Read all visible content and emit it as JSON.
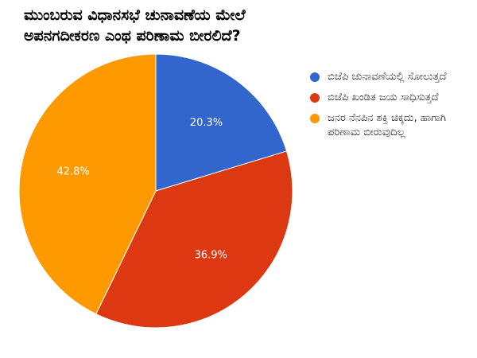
{
  "chart_data": {
    "type": "pie",
    "title": [
      "ಮುಂಬರುವ ವಿಧಾನಸಭೆ ಚುನಾವಣೆಯ ಮೇಲೆ",
      "ಅಪನಗದೀಕರಣ ಎಂಥ ಪರಿಣಾಮ ಬೀರಲಿದೆ?"
    ],
    "categories": [
      "ಬಿಜೆಪಿ ಚುನಾವಣೆಯಲ್ಲಿ ಸೋಲುತ್ತದೆ",
      "ಬಿಜೆಪಿ ಖಂಡಿತ ಜಯ ಸಾಧಿಸುತ್ತದೆ",
      "ಜನರ ನೆನಪಿನ ಶಕ್ತಿ ಚಿಕ್ಕದು, ಹಾಗಾಗಿ ಪರಿಣಾಮ ಬೀರುವುದಿಲ್ಲ"
    ],
    "values": [
      20.3,
      36.9,
      42.8
    ],
    "value_labels": [
      "20.3%",
      "36.9%",
      "42.8%"
    ],
    "colors": [
      "#3366cc",
      "#dc3912",
      "#ff9900"
    ],
    "legend": "right"
  }
}
